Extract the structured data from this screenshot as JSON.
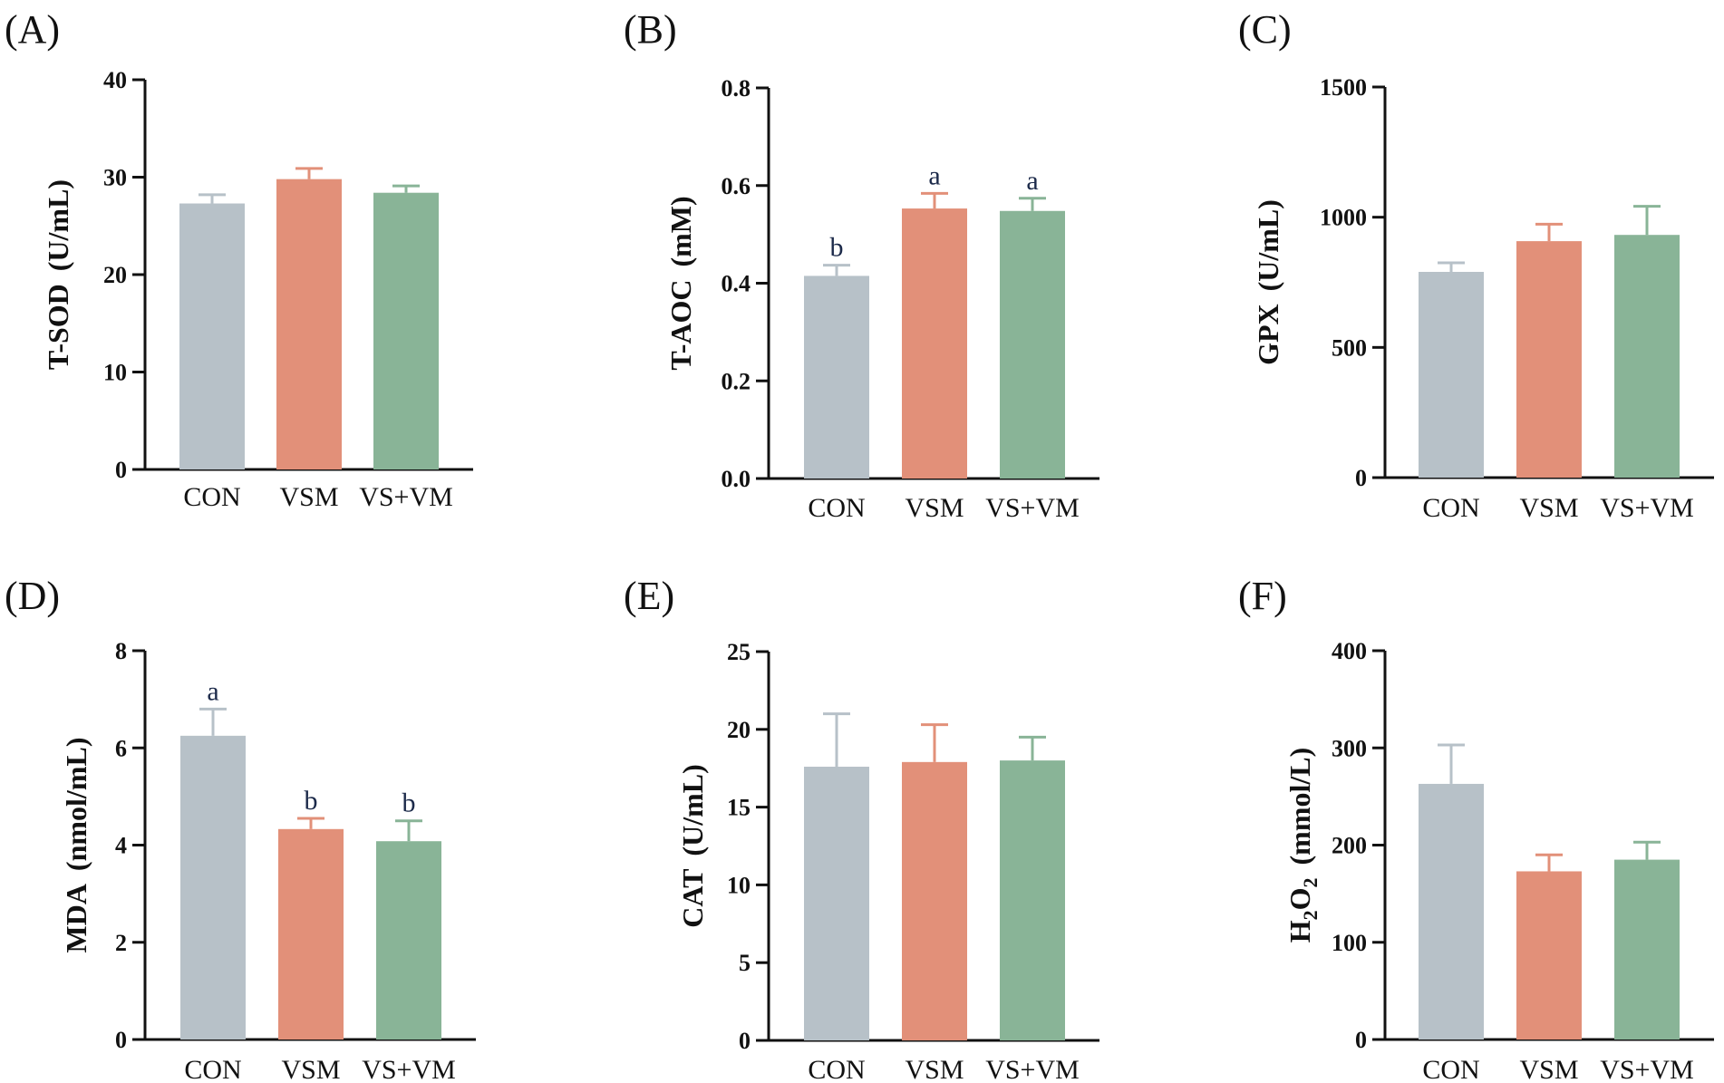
{
  "colors": {
    "CON": "#b7c1c8",
    "VSM": "#e29079",
    "VS+VM": "#89b497",
    "axis": "#111111"
  },
  "chart_data": [
    {
      "type": "bar",
      "panel": "(A)",
      "ylabel": "T-SOD (U/mL)",
      "ylabel_parts": [
        "T-SOD",
        "(U/mL)"
      ],
      "categories": [
        "CON",
        "VSM",
        "VS+VM"
      ],
      "values": [
        27.3,
        29.8,
        28.4
      ],
      "errors": [
        0.9,
        1.1,
        0.7
      ],
      "ylim": [
        0,
        40
      ],
      "ticks": [
        "0",
        "10",
        "20",
        "30",
        "40"
      ],
      "letters": [
        "",
        "",
        ""
      ]
    },
    {
      "type": "bar",
      "panel": "(B)",
      "ylabel": "T-AOC (mM)",
      "ylabel_parts": [
        "T-AOC",
        "(mM)"
      ],
      "categories": [
        "CON",
        "VSM",
        "VS+VM"
      ],
      "values": [
        0.415,
        0.553,
        0.548
      ],
      "errors": [
        0.022,
        0.031,
        0.026
      ],
      "ylim": [
        0,
        0.8
      ],
      "ticks": [
        "0.0",
        "0.2",
        "0.4",
        "0.6",
        "0.8"
      ],
      "letters": [
        "b",
        "a",
        "a"
      ]
    },
    {
      "type": "bar",
      "panel": "(C)",
      "ylabel": "GPX (U/mL)",
      "ylabel_parts": [
        "GPX",
        "(U/mL)"
      ],
      "categories": [
        "CON",
        "VSM",
        "VS+VM"
      ],
      "values": [
        790,
        908,
        932
      ],
      "errors": [
        35,
        65,
        110
      ],
      "ylim": [
        0,
        1500
      ],
      "ticks": [
        "0",
        "500",
        "1000",
        "1500"
      ],
      "letters": [
        "",
        "",
        ""
      ]
    },
    {
      "type": "bar",
      "panel": "(D)",
      "ylabel": "MDA (nmol/mL)",
      "ylabel_parts": [
        "MDA",
        "(nmol/mL)"
      ],
      "categories": [
        "CON",
        "VSM",
        "VS+VM"
      ],
      "values": [
        6.25,
        4.33,
        4.08
      ],
      "errors": [
        0.55,
        0.22,
        0.42
      ],
      "ylim": [
        0,
        8
      ],
      "ticks": [
        "0",
        "2",
        "4",
        "6",
        "8"
      ],
      "letters": [
        "a",
        "b",
        "b"
      ]
    },
    {
      "type": "bar",
      "panel": "(E)",
      "ylabel": "CAT (U/mL)",
      "ylabel_parts": [
        "CAT",
        "(U/mL)"
      ],
      "categories": [
        "CON",
        "VSM",
        "VS+VM"
      ],
      "values": [
        17.6,
        17.9,
        18.0
      ],
      "errors": [
        3.4,
        2.4,
        1.5
      ],
      "ylim": [
        0,
        25
      ],
      "ticks": [
        "0",
        "5",
        "10",
        "15",
        "20",
        "25"
      ],
      "letters": [
        "",
        "",
        ""
      ]
    },
    {
      "type": "bar",
      "panel": "(F)",
      "ylabel": "H2O2 (mmol/L)",
      "ylabel_parts": [
        "H",
        "2",
        "O",
        "2",
        "(mmol/L)"
      ],
      "categories": [
        "CON",
        "VSM",
        "VS+VM"
      ],
      "values": [
        263,
        173,
        185
      ],
      "errors": [
        40,
        17,
        18
      ],
      "ylim": [
        0,
        400
      ],
      "ticks": [
        "0",
        "100",
        "200",
        "300",
        "400"
      ],
      "letters": [
        "",
        "",
        ""
      ]
    }
  ]
}
